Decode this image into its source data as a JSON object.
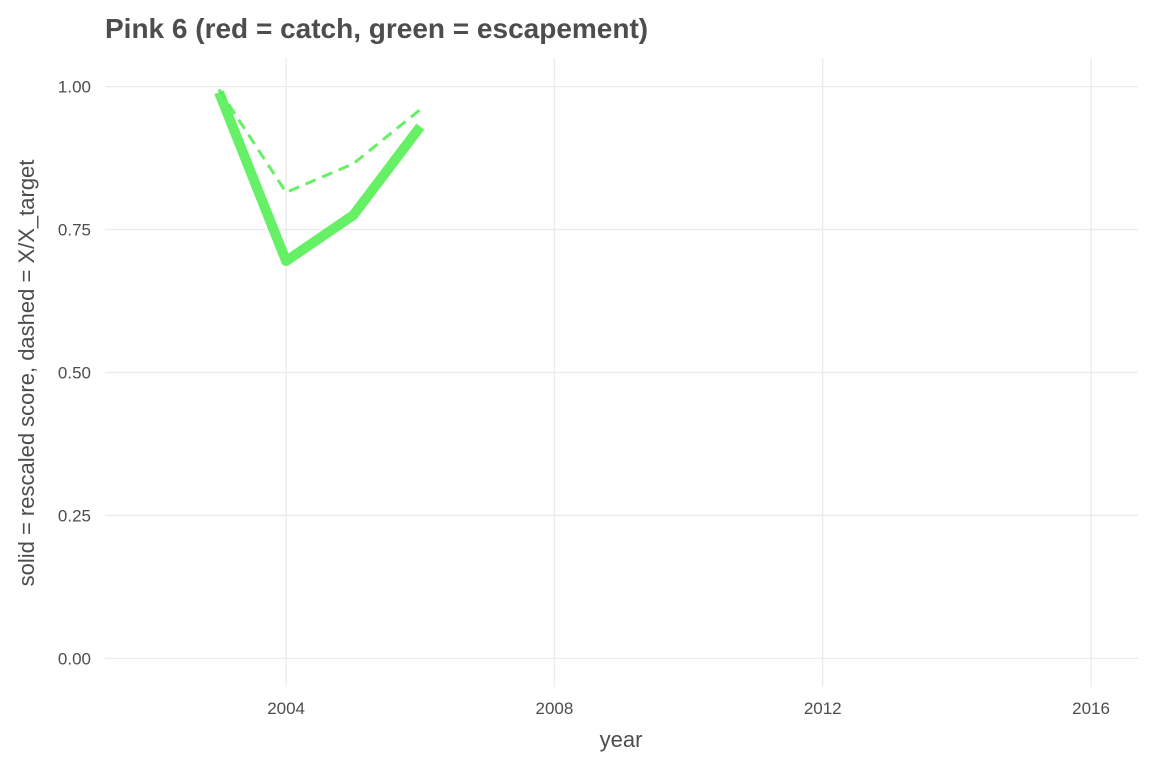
{
  "chart_data": {
    "type": "line",
    "title": "Pink 6 (red = catch, green = escapement)",
    "xlabel": "year",
    "ylabel": "solid = rescaled score, dashed = X/X_target",
    "xlim": [
      2001.3,
      2016.7
    ],
    "ylim": [
      -0.05,
      1.05
    ],
    "x_ticks": [
      2004,
      2008,
      2012,
      2016
    ],
    "y_ticks": [
      0.0,
      0.25,
      0.5,
      0.75,
      1.0
    ],
    "y_tick_labels": [
      "0.00",
      "0.25",
      "0.50",
      "0.75",
      "1.00"
    ],
    "grid": true,
    "series": [
      {
        "style": "solid",
        "color": "#55ee55",
        "x": [
          2003,
          2004,
          2005,
          2006
        ],
        "y": [
          0.99,
          0.695,
          0.775,
          0.93
        ]
      },
      {
        "style": "dashed",
        "color": "#55ee55",
        "x": [
          2003,
          2004,
          2005,
          2006
        ],
        "y": [
          0.995,
          0.815,
          0.865,
          0.96
        ]
      }
    ]
  }
}
